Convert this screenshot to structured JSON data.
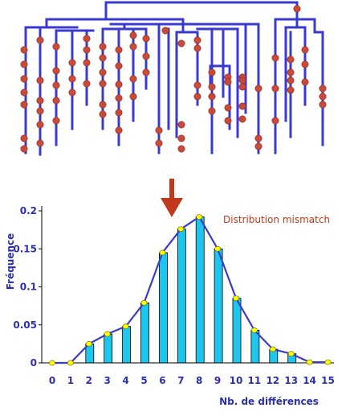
{
  "colors": {
    "tree": "#3a3ad0",
    "mutation": "#c84a3a",
    "bar": "#1ec6ee",
    "line": "#3a3ad0",
    "point": "#ffff00",
    "arrow": "#c0391b",
    "axis": "#2b2fb0",
    "annotation": "#c0391b"
  },
  "annotation": "Distribution mismatch",
  "chart_data": {
    "type": "bar",
    "title": "",
    "xlabel": "Nb. de différences",
    "ylabel": "Fréquence",
    "xlim": [
      0,
      15
    ],
    "ylim": [
      0,
      0.2
    ],
    "x_ticks": [
      "0",
      "1",
      "2",
      "3",
      "4",
      "5",
      "6",
      "7",
      "8",
      "9",
      "10",
      "11",
      "12",
      "13",
      "14",
      "15"
    ],
    "y_ticks": [
      "0",
      "0.05",
      "0.1",
      "0.15",
      "0.2"
    ],
    "categories": [
      0,
      1,
      2,
      3,
      4,
      5,
      6,
      7,
      8,
      9,
      10,
      11,
      12,
      13,
      14,
      15
    ],
    "values": [
      0,
      0,
      0.025,
      0.038,
      0.048,
      0.079,
      0.145,
      0.176,
      0.192,
      0.15,
      0.085,
      0.043,
      0.018,
      0.012,
      0.001,
      0.001
    ],
    "line_values": [
      0,
      0,
      0.025,
      0.038,
      0.048,
      0.079,
      0.145,
      0.176,
      0.192,
      0.15,
      0.085,
      0.043,
      0.018,
      0.012,
      0.001,
      0.001
    ],
    "grid": false,
    "legend": "none"
  }
}
